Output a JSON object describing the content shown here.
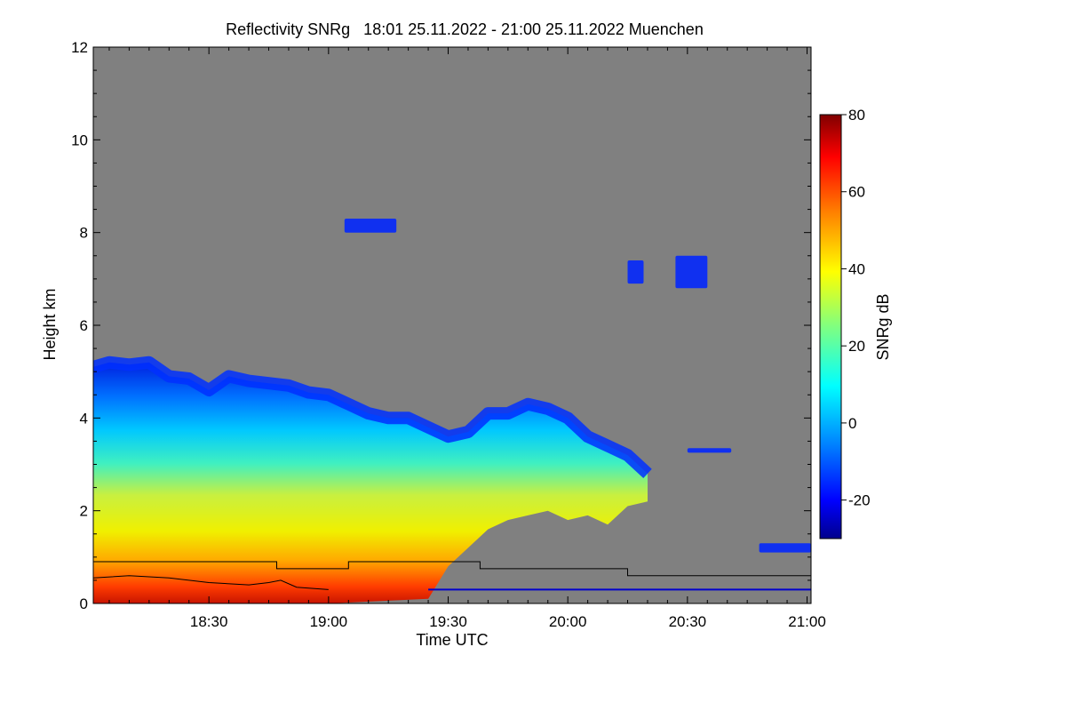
{
  "chart_data": {
    "type": "heatmap",
    "title": "Reflectivity SNRg   18:01 25.11.2022 - 21:00 25.11.2022 Muenchen",
    "xlabel": "Time UTC",
    "ylabel": "Height km",
    "xlim_minutes": [
      1081,
      1261
    ],
    "x_ticks": [
      {
        "minute": 1110,
        "label": "18:30"
      },
      {
        "minute": 1140,
        "label": "19:00"
      },
      {
        "minute": 1170,
        "label": "19:30"
      },
      {
        "minute": 1200,
        "label": "20:00"
      },
      {
        "minute": 1230,
        "label": "20:30"
      },
      {
        "minute": 1260,
        "label": "21:00"
      }
    ],
    "ylim": [
      0,
      12
    ],
    "y_ticks": [
      {
        "value": 0,
        "label": "0"
      },
      {
        "value": 2,
        "label": "2"
      },
      {
        "value": 4,
        "label": "4"
      },
      {
        "value": 6,
        "label": "6"
      },
      {
        "value": 8,
        "label": "8"
      },
      {
        "value": 10,
        "label": "10"
      },
      {
        "value": 12,
        "label": "12"
      }
    ],
    "colorbar": {
      "label": "SNRg dB",
      "range": [
        -30,
        80
      ],
      "ticks": [
        {
          "value": -20,
          "label": "-20"
        },
        {
          "value": 0,
          "label": "0"
        },
        {
          "value": 20,
          "label": "20"
        },
        {
          "value": 40,
          "label": "40"
        },
        {
          "value": 60,
          "label": "60"
        },
        {
          "value": 80,
          "label": "80"
        }
      ],
      "colors": [
        "#00008c",
        "#0000ff",
        "#0080ff",
        "#00ffff",
        "#80ff80",
        "#ffff00",
        "#ff8000",
        "#ff0000",
        "#800000"
      ]
    },
    "background_color": "#808080",
    "cloud_top_profile": [
      {
        "minute": 1081,
        "height": 5.1
      },
      {
        "minute": 1085,
        "height": 5.2
      },
      {
        "minute": 1090,
        "height": 5.15
      },
      {
        "minute": 1095,
        "height": 5.2
      },
      {
        "minute": 1100,
        "height": 4.9
      },
      {
        "minute": 1105,
        "height": 4.85
      },
      {
        "minute": 1110,
        "height": 4.6
      },
      {
        "minute": 1115,
        "height": 4.9
      },
      {
        "minute": 1120,
        "height": 4.8
      },
      {
        "minute": 1125,
        "height": 4.75
      },
      {
        "minute": 1130,
        "height": 4.7
      },
      {
        "minute": 1135,
        "height": 4.55
      },
      {
        "minute": 1140,
        "height": 4.5
      },
      {
        "minute": 1145,
        "height": 4.3
      },
      {
        "minute": 1150,
        "height": 4.1
      },
      {
        "minute": 1155,
        "height": 4.0
      },
      {
        "minute": 1160,
        "height": 4.0
      },
      {
        "minute": 1165,
        "height": 3.8
      },
      {
        "minute": 1170,
        "height": 3.6
      },
      {
        "minute": 1175,
        "height": 3.7
      },
      {
        "minute": 1180,
        "height": 4.1
      },
      {
        "minute": 1185,
        "height": 4.1
      },
      {
        "minute": 1190,
        "height": 4.3
      },
      {
        "minute": 1195,
        "height": 4.2
      },
      {
        "minute": 1200,
        "height": 4.0
      },
      {
        "minute": 1205,
        "height": 3.6
      },
      {
        "minute": 1210,
        "height": 3.4
      },
      {
        "minute": 1215,
        "height": 3.2
      },
      {
        "minute": 1220,
        "height": 2.8
      }
    ],
    "cloud_base_profile": [
      {
        "minute": 1081,
        "height": 0
      },
      {
        "minute": 1140,
        "height": 0
      },
      {
        "minute": 1165,
        "height": 0.1
      },
      {
        "minute": 1170,
        "height": 0.8
      },
      {
        "minute": 1175,
        "height": 1.2
      },
      {
        "minute": 1180,
        "height": 1.6
      },
      {
        "minute": 1185,
        "height": 1.8
      },
      {
        "minute": 1190,
        "height": 1.9
      },
      {
        "minute": 1195,
        "height": 2.0
      },
      {
        "minute": 1200,
        "height": 1.8
      },
      {
        "minute": 1205,
        "height": 1.9
      },
      {
        "minute": 1210,
        "height": 1.7
      },
      {
        "minute": 1215,
        "height": 2.1
      },
      {
        "minute": 1220,
        "height": 2.2
      }
    ],
    "isolated_echoes": [
      {
        "name": "echo-patch-1",
        "minute_start": 1144,
        "minute_end": 1157,
        "height_bottom": 8.0,
        "height_top": 8.3
      },
      {
        "name": "echo-patch-2",
        "minute_start": 1215,
        "minute_end": 1219,
        "height_bottom": 6.9,
        "height_top": 7.4
      },
      {
        "name": "echo-patch-3",
        "minute_start": 1227,
        "minute_end": 1235,
        "height_bottom": 6.8,
        "height_top": 7.5
      },
      {
        "name": "echo-patch-4",
        "minute_start": 1230,
        "minute_end": 1241,
        "height_bottom": 3.25,
        "height_top": 3.35
      },
      {
        "name": "echo-patch-5",
        "minute_start": 1248,
        "minute_end": 1261,
        "height_bottom": 1.1,
        "height_top": 1.3
      }
    ],
    "overlay_lines": [
      {
        "name": "step-line",
        "color": "#000000",
        "points": [
          {
            "minute": 1081,
            "height": 0.9
          },
          {
            "minute": 1127,
            "height": 0.9
          },
          {
            "minute": 1127,
            "height": 0.75
          },
          {
            "minute": 1145,
            "height": 0.75
          },
          {
            "minute": 1145,
            "height": 0.9
          },
          {
            "minute": 1178,
            "height": 0.9
          },
          {
            "minute": 1178,
            "height": 0.75
          },
          {
            "minute": 1215,
            "height": 0.75
          },
          {
            "minute": 1215,
            "height": 0.6
          },
          {
            "minute": 1253,
            "height": 0.6
          },
          {
            "minute": 1253,
            "height": 0.6
          },
          {
            "minute": 1261,
            "height": 0.6
          }
        ]
      },
      {
        "name": "boundary-line",
        "color": "#000000",
        "points": [
          {
            "minute": 1081,
            "height": 0.55
          },
          {
            "minute": 1090,
            "height": 0.6
          },
          {
            "minute": 1100,
            "height": 0.55
          },
          {
            "minute": 1110,
            "height": 0.45
          },
          {
            "minute": 1120,
            "height": 0.4
          },
          {
            "minute": 1125,
            "height": 0.45
          },
          {
            "minute": 1128,
            "height": 0.5
          },
          {
            "minute": 1132,
            "height": 0.35
          },
          {
            "minute": 1140,
            "height": 0.3
          }
        ]
      },
      {
        "name": "blue-level-line",
        "color": "#0000cc",
        "points": [
          {
            "minute": 1165,
            "height": 0.3
          },
          {
            "minute": 1261,
            "height": 0.3
          }
        ]
      }
    ]
  }
}
